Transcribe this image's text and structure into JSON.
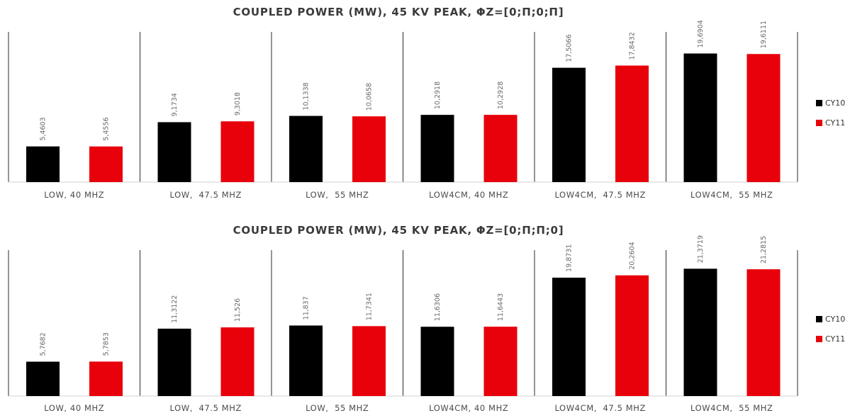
{
  "chart_data": [
    {
      "type": "bar",
      "title": "COUPLED POWER (MW), 45 KV PEAK, ΦZ=[0;Π;0;Π]",
      "categories": [
        "LOW, 40 MHZ",
        "LOW,  47.5 MHZ",
        "LOW,  55 MHZ",
        "LOW4CM, 40 MHZ",
        "LOW4CM,  47.5 MHZ",
        "LOW4CM,  55 MHZ"
      ],
      "series": [
        {
          "name": "CY10",
          "color": "#000000",
          "values": [
            5.4603,
            9.1734,
            10.1338,
            10.2918,
            17.5066,
            19.6904
          ],
          "labels": [
            "5,4603",
            "9,1734",
            "10,1338",
            "10,2918",
            "17,5066",
            "19,6904"
          ]
        },
        {
          "name": "CY11",
          "color": "#e8000b",
          "values": [
            5.4556,
            9.3018,
            10.0658,
            10.2928,
            17.8432,
            19.6111
          ],
          "labels": [
            "5,4556",
            "9,3018",
            "10,0658",
            "10,2928",
            "17,8432",
            "19,6111"
          ]
        }
      ],
      "legend": [
        "CY10",
        "CY11"
      ],
      "legend_position": "right",
      "ylim": [
        0,
        23
      ],
      "grid": false
    },
    {
      "type": "bar",
      "title": "COUPLED POWER (MW), 45 KV PEAK, ΦZ=[0;Π;Π;0]",
      "categories": [
        "LOW, 40 MHZ",
        "LOW,  47.5 MHZ",
        "LOW,  55 MHZ",
        "LOW4CM, 40 MHZ",
        "LOW4CM,  47.5 MHZ",
        "LOW4CM,  55 MHZ"
      ],
      "series": [
        {
          "name": "CY10",
          "color": "#000000",
          "values": [
            5.7682,
            11.3122,
            11.837,
            11.6306,
            19.8731,
            21.3719
          ],
          "labels": [
            "5,7682",
            "11,3122",
            "11,837",
            "11,6306",
            "19,8731",
            "21,3719"
          ]
        },
        {
          "name": "CY11",
          "color": "#e8000b",
          "values": [
            5.7853,
            11.526,
            11.7341,
            11.6443,
            20.2604,
            21.2815
          ],
          "labels": [
            "5,7853",
            "11,526",
            "11,7341",
            "11,6443",
            "20,2604",
            "21,2815"
          ]
        }
      ],
      "legend": [
        "CY10",
        "CY11"
      ],
      "legend_position": "right",
      "ylim": [
        0,
        24.5
      ],
      "grid": false
    }
  ]
}
